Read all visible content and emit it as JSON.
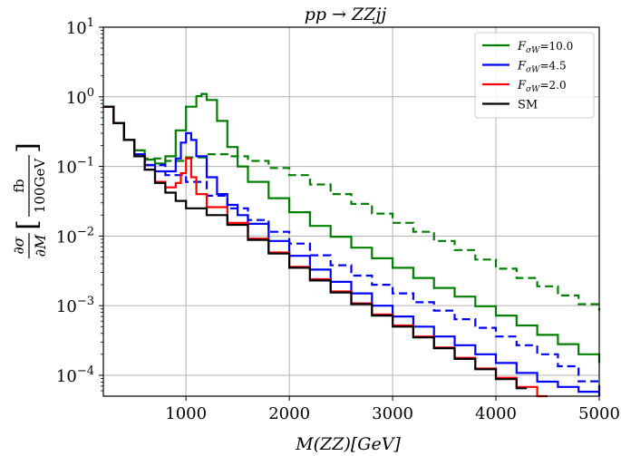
{
  "chart_data": {
    "type": "line",
    "title": "pp → ZZjj",
    "xlabel": "M(ZZ)[GeV]",
    "ylabel": "∂σ/∂M [fb/100GeV]",
    "ylabel_parts": {
      "num": "∂σ",
      "den": "∂M",
      "unit_num": "fb",
      "unit_den": "100GeV"
    },
    "xlim": [
      200,
      5000
    ],
    "ylim_exp": [
      -4.3,
      1
    ],
    "yscale": "log",
    "grid": true,
    "legend_placement": "top-right",
    "x_ticks": [
      1000,
      2000,
      3000,
      4000,
      5000
    ],
    "y_ticks": [
      {
        "base": "10",
        "exp": "1",
        "value": 10
      },
      {
        "base": "10",
        "exp": "0",
        "value": 1
      },
      {
        "base": "10",
        "exp": "−1",
        "value": 0.1
      },
      {
        "base": "10",
        "exp": "−2",
        "value": 0.01
      },
      {
        "base": "10",
        "exp": "−3",
        "value": 0.001
      },
      {
        "base": "10",
        "exp": "−4",
        "value": 0.0001
      }
    ],
    "legend": [
      {
        "label_main": "F",
        "label_sub": "σW",
        "label_value": "=10.0",
        "color": "#008000"
      },
      {
        "label_main": "F",
        "label_sub": "σW",
        "label_value": "=4.5",
        "color": "#0000ff"
      },
      {
        "label_main": "F",
        "label_sub": "σW",
        "label_value": "=2.0",
        "color": "#ff0000"
      },
      {
        "label_main": "SM",
        "label_sub": "",
        "label_value": "",
        "color": "#000000"
      }
    ],
    "series": [
      {
        "name": "F_σW=10.0",
        "color": "#008000",
        "style": "solid",
        "points": [
          [
            200,
            0.72
          ],
          [
            300,
            0.42
          ],
          [
            400,
            0.24
          ],
          [
            500,
            0.17
          ],
          [
            600,
            0.125
          ],
          [
            700,
            0.11
          ],
          [
            800,
            0.14
          ],
          [
            900,
            0.33
          ],
          [
            1000,
            0.72
          ],
          [
            1100,
            1.02
          ],
          [
            1150,
            1.1
          ],
          [
            1200,
            0.9
          ],
          [
            1300,
            0.45
          ],
          [
            1400,
            0.19
          ],
          [
            1500,
            0.1
          ],
          [
            1600,
            0.06
          ],
          [
            1800,
            0.035
          ],
          [
            2000,
            0.022
          ],
          [
            2200,
            0.014
          ],
          [
            2400,
            0.0098
          ],
          [
            2600,
            0.0068
          ],
          [
            2800,
            0.0048
          ],
          [
            3000,
            0.0035
          ],
          [
            3200,
            0.0025
          ],
          [
            3400,
            0.0018
          ],
          [
            3600,
            0.00135
          ],
          [
            3800,
            0.00098
          ],
          [
            4000,
            0.00072
          ],
          [
            4200,
            0.00052
          ],
          [
            4400,
            0.00038
          ],
          [
            4600,
            0.00028
          ],
          [
            4800,
            0.0002
          ],
          [
            5000,
            0.00015
          ]
        ]
      },
      {
        "name": "F_σW=10.0 (dashed)",
        "color": "#008000",
        "style": "dashed",
        "points": [
          [
            200,
            0.72
          ],
          [
            300,
            0.42
          ],
          [
            400,
            0.24
          ],
          [
            500,
            0.17
          ],
          [
            600,
            0.13
          ],
          [
            800,
            0.12
          ],
          [
            1000,
            0.135
          ],
          [
            1200,
            0.15
          ],
          [
            1400,
            0.14
          ],
          [
            1600,
            0.12
          ],
          [
            1800,
            0.095
          ],
          [
            2000,
            0.075
          ],
          [
            2200,
            0.055
          ],
          [
            2400,
            0.04
          ],
          [
            2600,
            0.029
          ],
          [
            2800,
            0.021
          ],
          [
            3000,
            0.0155
          ],
          [
            3200,
            0.0115
          ],
          [
            3400,
            0.0085
          ],
          [
            3600,
            0.0063
          ],
          [
            3800,
            0.0046
          ],
          [
            4000,
            0.0034
          ],
          [
            4200,
            0.0025
          ],
          [
            4400,
            0.0019
          ],
          [
            4600,
            0.0014
          ],
          [
            4800,
            0.00105
          ],
          [
            5000,
            0.00085
          ]
        ]
      },
      {
        "name": "F_σW=4.5",
        "color": "#0000ff",
        "style": "solid",
        "points": [
          [
            200,
            0.72
          ],
          [
            300,
            0.42
          ],
          [
            400,
            0.24
          ],
          [
            500,
            0.15
          ],
          [
            600,
            0.105
          ],
          [
            700,
            0.085
          ],
          [
            800,
            0.085
          ],
          [
            900,
            0.13
          ],
          [
            950,
            0.22
          ],
          [
            1000,
            0.3
          ],
          [
            1050,
            0.24
          ],
          [
            1100,
            0.14
          ],
          [
            1200,
            0.07
          ],
          [
            1300,
            0.04
          ],
          [
            1400,
            0.028
          ],
          [
            1500,
            0.02
          ],
          [
            1600,
            0.015
          ],
          [
            1800,
            0.0085
          ],
          [
            2000,
            0.0052
          ],
          [
            2200,
            0.0033
          ],
          [
            2400,
            0.0022
          ],
          [
            2600,
            0.0015
          ],
          [
            2800,
            0.001
          ],
          [
            3000,
            0.0007
          ],
          [
            3200,
            0.0005
          ],
          [
            3400,
            0.00036
          ],
          [
            3600,
            0.00027
          ],
          [
            3800,
            0.0002
          ],
          [
            4000,
            0.00015
          ],
          [
            4200,
            0.000108
          ],
          [
            4400,
            8.1e-05
          ],
          [
            4600,
            6.8e-05
          ],
          [
            4800,
            5.8e-05
          ],
          [
            5000,
            5e-05
          ]
        ]
      },
      {
        "name": "F_σW=4.5 (dashed)",
        "color": "#0000ff",
        "style": "dashed",
        "points": [
          [
            200,
            0.72
          ],
          [
            300,
            0.42
          ],
          [
            400,
            0.24
          ],
          [
            500,
            0.15
          ],
          [
            600,
            0.105
          ],
          [
            800,
            0.075
          ],
          [
            1000,
            0.06
          ],
          [
            1200,
            0.038
          ],
          [
            1400,
            0.025
          ],
          [
            1600,
            0.017
          ],
          [
            1800,
            0.0115
          ],
          [
            2000,
            0.0078
          ],
          [
            2200,
            0.0053
          ],
          [
            2400,
            0.0038
          ],
          [
            2600,
            0.0027
          ],
          [
            2800,
            0.002
          ],
          [
            3000,
            0.0015
          ],
          [
            3200,
            0.00112
          ],
          [
            3400,
            0.00085
          ],
          [
            3600,
            0.00064
          ],
          [
            3800,
            0.00048
          ],
          [
            4000,
            0.00036
          ],
          [
            4200,
            0.00027
          ],
          [
            4400,
            0.0002
          ],
          [
            4600,
            0.000135
          ],
          [
            4800,
            8.2e-05
          ],
          [
            5000,
            6e-05
          ]
        ]
      },
      {
        "name": "F_σW=2.0",
        "color": "#ff0000",
        "style": "solid",
        "points": [
          [
            200,
            0.72
          ],
          [
            300,
            0.42
          ],
          [
            400,
            0.24
          ],
          [
            500,
            0.14
          ],
          [
            600,
            0.09
          ],
          [
            700,
            0.06
          ],
          [
            800,
            0.05
          ],
          [
            900,
            0.058
          ],
          [
            950,
            0.08
          ],
          [
            1000,
            0.13
          ],
          [
            1050,
            0.07
          ],
          [
            1100,
            0.04
          ],
          [
            1200,
            0.026
          ],
          [
            1400,
            0.0155
          ],
          [
            1600,
            0.0092
          ],
          [
            1800,
            0.0058
          ],
          [
            2000,
            0.0036
          ],
          [
            2200,
            0.0024
          ],
          [
            2400,
            0.0016
          ],
          [
            2600,
            0.00108
          ],
          [
            2800,
            0.00075
          ],
          [
            3000,
            0.00052
          ],
          [
            3200,
            0.00036
          ],
          [
            3400,
            0.00025
          ],
          [
            3600,
            0.000178
          ],
          [
            3800,
            0.000125
          ],
          [
            4000,
            9.2e-05
          ],
          [
            4200,
            6.8e-05
          ],
          [
            4400,
            5e-05
          ]
        ]
      },
      {
        "name": "SM",
        "color": "#000000",
        "style": "solid",
        "points": [
          [
            200,
            0.72
          ],
          [
            300,
            0.42
          ],
          [
            400,
            0.24
          ],
          [
            500,
            0.14
          ],
          [
            600,
            0.09
          ],
          [
            700,
            0.058
          ],
          [
            800,
            0.042
          ],
          [
            900,
            0.032
          ],
          [
            1000,
            0.025
          ],
          [
            1200,
            0.02
          ],
          [
            1400,
            0.0145
          ],
          [
            1600,
            0.0088
          ],
          [
            1800,
            0.0056
          ],
          [
            2000,
            0.0035
          ],
          [
            2200,
            0.0023
          ],
          [
            2400,
            0.00155
          ],
          [
            2600,
            0.00105
          ],
          [
            2800,
            0.00072
          ],
          [
            3000,
            0.0005
          ],
          [
            3200,
            0.00035
          ],
          [
            3400,
            0.000245
          ],
          [
            3600,
            0.000172
          ],
          [
            3800,
            0.000122
          ],
          [
            4000,
            8.8e-05
          ],
          [
            4200,
            6.5e-05
          ]
        ]
      }
    ]
  }
}
